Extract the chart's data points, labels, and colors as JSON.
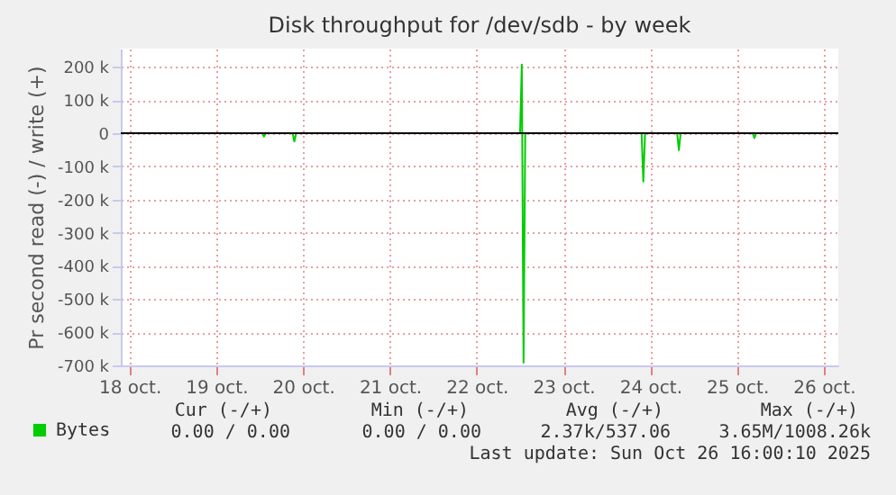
{
  "chart_data": {
    "type": "line",
    "title": "Disk throughput for /dev/sdb - by week",
    "ylabel": "Pr second read (-) / write (+)",
    "x": [
      "2025-10-18T09:36",
      "2025-10-20T00:43",
      "2025-10-20T01:12",
      "2025-10-20T01:41",
      "2025-10-20T09:07",
      "2025-10-20T09:36",
      "2025-10-20T10:05",
      "2025-10-23T00:00",
      "2025-10-23T00:29",
      "2025-10-23T00:58",
      "2025-10-23T01:26",
      "2025-10-24T09:36",
      "2025-10-24T10:05",
      "2025-10-24T10:34",
      "2025-10-24T19:26",
      "2025-10-24T19:55",
      "2025-10-24T20:24",
      "2025-10-25T16:19",
      "2025-10-25T16:48",
      "2025-10-25T17:17",
      "2025-10-26T16:00"
    ],
    "series": [
      {
        "name": "Bytes",
        "color": "#00cc00",
        "values": [
          0,
          0,
          -10000,
          0,
          0,
          -25000,
          0,
          0,
          207000,
          -692000,
          0,
          0,
          -146000,
          0,
          0,
          -51000,
          0,
          0,
          -15000,
          0,
          0
        ]
      }
    ],
    "xlim": [
      "2025-10-18T09:36",
      "2025-10-26T16:00"
    ],
    "xticks": [
      {
        "value": "2025-10-18T12:00",
        "label": "18 oct."
      },
      {
        "value": "2025-10-19T12:00",
        "label": "19 oct."
      },
      {
        "value": "2025-10-20T12:00",
        "label": "20 oct."
      },
      {
        "value": "2025-10-21T12:00",
        "label": "21 oct."
      },
      {
        "value": "2025-10-22T12:00",
        "label": "22 oct."
      },
      {
        "value": "2025-10-23T12:00",
        "label": "23 oct."
      },
      {
        "value": "2025-10-24T12:00",
        "label": "24 oct."
      },
      {
        "value": "2025-10-25T12:00",
        "label": "25 oct."
      },
      {
        "value": "2025-10-26T12:00",
        "label": "26 oct."
      }
    ],
    "ylim": [
      -700000,
      255000
    ],
    "yticks": [
      {
        "value": 200000,
        "label": "200 k"
      },
      {
        "value": 100000,
        "label": "100 k"
      },
      0,
      {
        "value": -100000,
        "label": "-100 k"
      },
      {
        "value": -200000,
        "label": "-200 k"
      },
      {
        "value": -300000,
        "label": "-300 k"
      },
      {
        "value": -400000,
        "label": "-400 k"
      },
      {
        "value": -500000,
        "label": "-500 k"
      },
      {
        "value": -600000,
        "label": "-600 k"
      },
      {
        "value": -700000,
        "label": "-700 k"
      }
    ],
    "grid": true,
    "legend": "bottom left",
    "ref_lines": [
      {
        "axis": "y",
        "value": 0,
        "color": "#000000"
      }
    ],
    "annotations": [
      "Cur (-/+)",
      "Min (-/+)",
      "Avg (-/+)",
      "Max (-/+)",
      "0.00 /  0.00",
      "0.00 /  0.00",
      "2.37k/537.06",
      "3.65M/1008.26k",
      "Last update: Sun Oct 26 16:00:10 2025"
    ]
  }
}
